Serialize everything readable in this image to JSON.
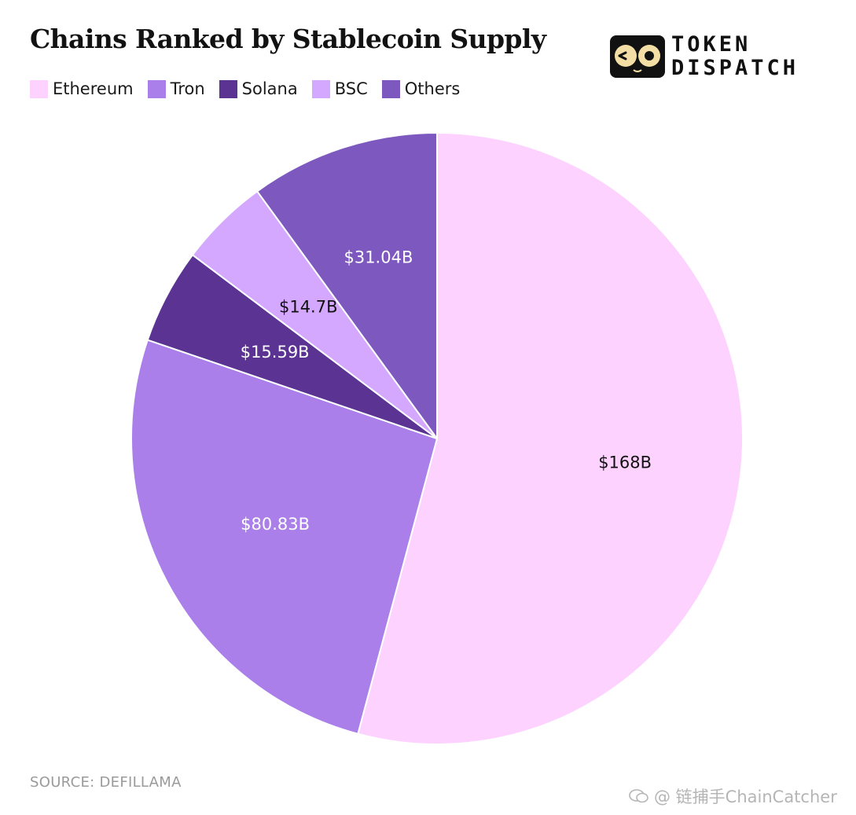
{
  "chart_data": {
    "type": "pie",
    "title": "Chains Ranked by Stablecoin Supply",
    "legend_position": "top-left",
    "slices": [
      {
        "name": "Ethereum",
        "value": 168,
        "label": "$168B",
        "color": "#FDD2FF",
        "label_color": "#111111"
      },
      {
        "name": "Tron",
        "value": 80.83,
        "label": "$80.83B",
        "color": "#AA7FEA",
        "label_color": "#FFFFFF"
      },
      {
        "name": "Solana",
        "value": 15.59,
        "label": "$15.59B",
        "color": "#5A3393",
        "label_color": "#FFFFFF"
      },
      {
        "name": "BSC",
        "value": 14.7,
        "label": "$14.7B",
        "color": "#D5A8FF",
        "label_color": "#111111"
      },
      {
        "name": "Others",
        "value": 31.04,
        "label": "$31.04B",
        "color": "#7D58BF",
        "label_color": "#FFFFFF"
      }
    ]
  },
  "logo": {
    "line1": "TOKEN",
    "line2": "DISPATCH"
  },
  "footer": {
    "source": "SOURCE: DEFILLAMA"
  },
  "watermark": {
    "text": "@ 链捕手ChainCatcher"
  }
}
